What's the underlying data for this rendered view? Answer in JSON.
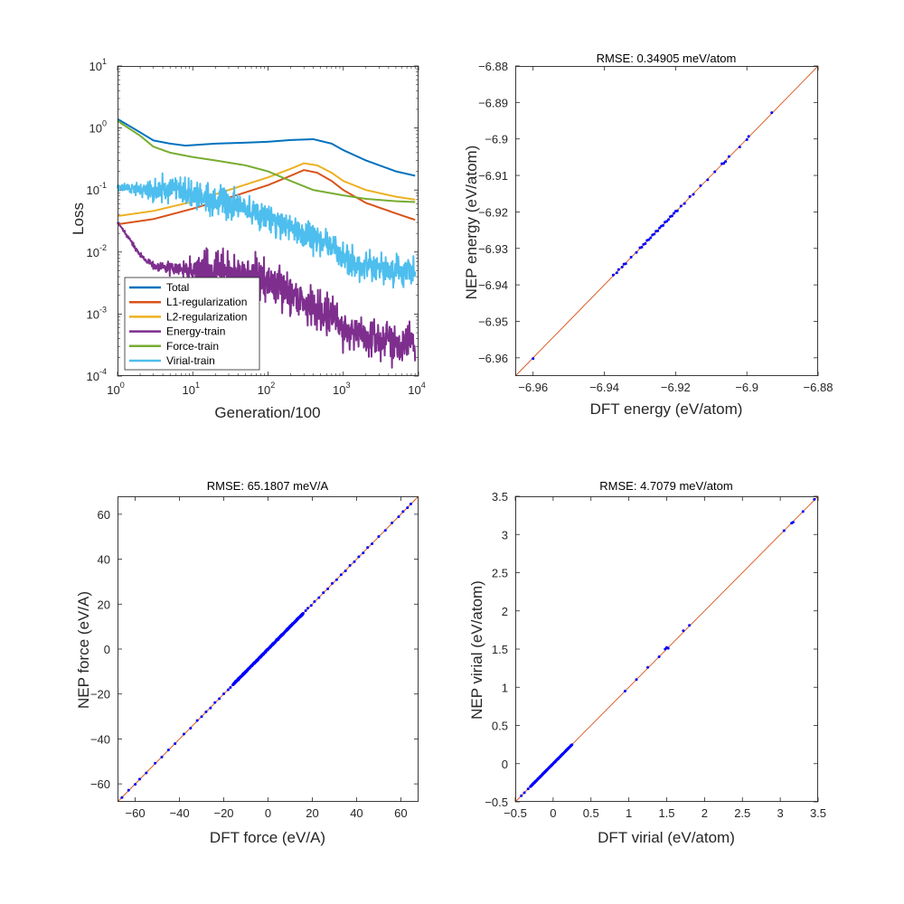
{
  "colors": {
    "total": "#0072BD",
    "l1": "#D95319",
    "l2": "#EDB120",
    "energy": "#7E2F8E",
    "force": "#77AC30",
    "virial": "#4DBEEE",
    "points": "#0000FF",
    "identity_line": "#D95319"
  },
  "chart_data": [
    {
      "id": "loss",
      "type": "line",
      "title": "",
      "xlabel": "Generation/100",
      "ylabel": "Loss",
      "xscale": "log",
      "yscale": "log",
      "xlim": [
        1,
        10000
      ],
      "ylim": [
        0.0001,
        10
      ],
      "xticks": [
        {
          "value": 1,
          "base": "10",
          "exp": "0"
        },
        {
          "value": 10,
          "base": "10",
          "exp": "1"
        },
        {
          "value": 100,
          "base": "10",
          "exp": "2"
        },
        {
          "value": 1000,
          "base": "10",
          "exp": "3"
        },
        {
          "value": 10000,
          "base": "10",
          "exp": "4"
        }
      ],
      "yticks": [
        {
          "value": 0.0001,
          "base": "10",
          "exp": "-4"
        },
        {
          "value": 0.001,
          "base": "10",
          "exp": "-3"
        },
        {
          "value": 0.01,
          "base": "10",
          "exp": "-2"
        },
        {
          "value": 0.1,
          "base": "10",
          "exp": "-1"
        },
        {
          "value": 1,
          "base": "10",
          "exp": "0"
        },
        {
          "value": 10,
          "base": "10",
          "exp": "1"
        }
      ],
      "legend_position": "bottom-left",
      "series": [
        {
          "name": "Total",
          "color_key": "total",
          "noise": 0.01,
          "noise_x": 1000000,
          "points": [
            [
              1,
              1.4
            ],
            [
              2,
              0.85
            ],
            [
              3,
              0.63
            ],
            [
              5,
              0.56
            ],
            [
              8,
              0.52
            ],
            [
              20,
              0.56
            ],
            [
              50,
              0.58
            ],
            [
              100,
              0.6
            ],
            [
              200,
              0.64
            ],
            [
              400,
              0.66
            ],
            [
              700,
              0.56
            ],
            [
              1000,
              0.44
            ],
            [
              2000,
              0.3
            ],
            [
              5000,
              0.2
            ],
            [
              9000,
              0.17
            ]
          ]
        },
        {
          "name": "L1-regularization",
          "color_key": "l1",
          "noise": 0.0,
          "noise_x": 1000000,
          "points": [
            [
              1,
              0.028
            ],
            [
              3,
              0.034
            ],
            [
              10,
              0.05
            ],
            [
              30,
              0.075
            ],
            [
              100,
              0.12
            ],
            [
              200,
              0.17
            ],
            [
              300,
              0.21
            ],
            [
              450,
              0.19
            ],
            [
              700,
              0.14
            ],
            [
              1000,
              0.1
            ],
            [
              2000,
              0.062
            ],
            [
              5000,
              0.042
            ],
            [
              9000,
              0.033
            ]
          ]
        },
        {
          "name": "L2-regularization",
          "color_key": "l2",
          "noise": 0.0,
          "noise_x": 1000000,
          "points": [
            [
              1,
              0.038
            ],
            [
              3,
              0.046
            ],
            [
              10,
              0.065
            ],
            [
              30,
              0.1
            ],
            [
              100,
              0.16
            ],
            [
              200,
              0.22
            ],
            [
              300,
              0.27
            ],
            [
              450,
              0.25
            ],
            [
              700,
              0.19
            ],
            [
              1000,
              0.14
            ],
            [
              2000,
              0.1
            ],
            [
              5000,
              0.078
            ],
            [
              9000,
              0.07
            ]
          ]
        },
        {
          "name": "Energy-train",
          "color_key": "energy",
          "noise": 0.3,
          "noise_x": 15,
          "points": [
            [
              1,
              0.03
            ],
            [
              1.5,
              0.015
            ],
            [
              2,
              0.009
            ],
            [
              3,
              0.006
            ],
            [
              5,
              0.0055
            ],
            [
              10,
              0.005
            ],
            [
              20,
              0.005
            ],
            [
              40,
              0.0045
            ],
            [
              100,
              0.0033
            ],
            [
              200,
              0.0022
            ],
            [
              400,
              0.0013
            ],
            [
              700,
              0.0009
            ],
            [
              1000,
              0.0006
            ],
            [
              2000,
              0.00042
            ],
            [
              5000,
              0.00036
            ],
            [
              9000,
              0.00034
            ]
          ]
        },
        {
          "name": "Force-train",
          "color_key": "force",
          "noise": 0.015,
          "noise_x": 1000000,
          "points": [
            [
              1,
              1.3
            ],
            [
              2,
              0.75
            ],
            [
              3,
              0.5
            ],
            [
              5,
              0.4
            ],
            [
              10,
              0.34
            ],
            [
              20,
              0.3
            ],
            [
              50,
              0.25
            ],
            [
              100,
              0.2
            ],
            [
              200,
              0.14
            ],
            [
              400,
              0.1
            ],
            [
              1000,
              0.082
            ],
            [
              2000,
              0.072
            ],
            [
              5000,
              0.066
            ],
            [
              9000,
              0.064
            ]
          ]
        },
        {
          "name": "Virial-train",
          "color_key": "virial",
          "noise": 0.22,
          "noise_x": 4,
          "points": [
            [
              1,
              0.11
            ],
            [
              2,
              0.105
            ],
            [
              3,
              0.1
            ],
            [
              5,
              0.1
            ],
            [
              10,
              0.085
            ],
            [
              20,
              0.07
            ],
            [
              50,
              0.05
            ],
            [
              100,
              0.035
            ],
            [
              200,
              0.025
            ],
            [
              400,
              0.017
            ],
            [
              700,
              0.012
            ],
            [
              1000,
              0.008
            ],
            [
              2000,
              0.0055
            ],
            [
              5000,
              0.0048
            ],
            [
              9000,
              0.0047
            ]
          ]
        }
      ]
    },
    {
      "id": "energy",
      "type": "scatter",
      "title": "RMSE: 0.34905 meV/atom",
      "xlabel": "DFT energy (eV/atom)",
      "ylabel": "NEP energy (eV/atom)",
      "xlim": [
        -6.965,
        -6.88
      ],
      "ylim": [
        -6.965,
        -6.88
      ],
      "xticks": [
        -6.96,
        -6.94,
        -6.92,
        -6.9,
        -6.88
      ],
      "yticks": [
        -6.96,
        -6.95,
        -6.94,
        -6.93,
        -6.92,
        -6.91,
        -6.9,
        -6.89,
        -6.88
      ],
      "identity_line": true,
      "points": [
        [
          -6.96,
          -6.9602
        ],
        [
          -6.9375,
          -6.9373
        ],
        [
          -6.9365,
          -6.9367
        ],
        [
          -6.936,
          -6.9358
        ],
        [
          -6.935,
          -6.9351
        ],
        [
          -6.9345,
          -6.9343
        ],
        [
          -6.934,
          -6.9342
        ],
        [
          -6.9325,
          -6.9324
        ],
        [
          -6.931,
          -6.9311
        ],
        [
          -6.93,
          -6.9298
        ],
        [
          -6.9295,
          -6.9297
        ],
        [
          -6.929,
          -6.9289
        ],
        [
          -6.9285,
          -6.9287
        ],
        [
          -6.928,
          -6.9278
        ],
        [
          -6.9275,
          -6.9276
        ],
        [
          -6.927,
          -6.9271
        ],
        [
          -6.9265,
          -6.9263
        ],
        [
          -6.926,
          -6.9261
        ],
        [
          -6.9255,
          -6.9253
        ],
        [
          -6.925,
          -6.9252
        ],
        [
          -6.9245,
          -6.9244
        ],
        [
          -6.924,
          -6.9239
        ],
        [
          -6.9235,
          -6.9237
        ],
        [
          -6.923,
          -6.9228
        ],
        [
          -6.9225,
          -6.9226
        ],
        [
          -6.922,
          -6.9221
        ],
        [
          -6.9215,
          -6.9213
        ],
        [
          -6.921,
          -6.9211
        ],
        [
          -6.9205,
          -6.9204
        ],
        [
          -6.92,
          -6.9198
        ],
        [
          -6.9195,
          -6.9197
        ],
        [
          -6.9185,
          -6.9184
        ],
        [
          -6.9175,
          -6.9177
        ],
        [
          -6.916,
          -6.9158
        ],
        [
          -6.915,
          -6.9152
        ],
        [
          -6.913,
          -6.9128
        ],
        [
          -6.911,
          -6.9112
        ],
        [
          -6.909,
          -6.909
        ],
        [
          -6.907,
          -6.9068
        ],
        [
          -6.9065,
          -6.9067
        ],
        [
          -6.906,
          -6.9062
        ],
        [
          -6.905,
          -6.9048
        ],
        [
          -6.902,
          -6.9022
        ],
        [
          -6.9,
          -6.9002
        ],
        [
          -6.8995,
          -6.8993
        ],
        [
          -6.893,
          -6.8928
        ]
      ]
    },
    {
      "id": "force",
      "type": "scatter",
      "title": "RMSE: 65.1807 meV/A",
      "xlabel": "DFT force (eV/A)",
      "ylabel": "NEP force (eV/A)",
      "xlim": [
        -68,
        68
      ],
      "ylim": [
        -68,
        68
      ],
      "xticks": [
        -60,
        -40,
        -20,
        0,
        20,
        40,
        60
      ],
      "yticks": [
        -60,
        -40,
        -20,
        0,
        20,
        40,
        60
      ],
      "identity_line": true,
      "dense_band": {
        "range": [
          -16,
          16
        ],
        "count": 700,
        "spread": 0.3
      },
      "points": [
        [
          -66,
          -66.1
        ],
        [
          -63,
          -62.8
        ],
        [
          -60,
          -60.2
        ],
        [
          -58,
          -57.9
        ],
        [
          -55,
          -55.1
        ],
        [
          -51,
          -50.8
        ],
        [
          -48,
          -48.1
        ],
        [
          -45,
          -44.9
        ],
        [
          -42,
          -42.1
        ],
        [
          -38,
          -37.8
        ],
        [
          -35,
          -35.2
        ],
        [
          -32,
          -31.8
        ],
        [
          -30,
          -30.1
        ],
        [
          -28,
          -27.9
        ],
        [
          -26,
          -26.2
        ],
        [
          -24,
          -23.8
        ],
        [
          -22,
          -22.1
        ],
        [
          -20,
          -19.9
        ],
        [
          -18,
          -18.1
        ],
        [
          -17,
          -17.1
        ],
        [
          17,
          17.1
        ],
        [
          18,
          18.2
        ],
        [
          19.5,
          19.4
        ],
        [
          21,
          21.1
        ],
        [
          23,
          22.9
        ],
        [
          25,
          25.1
        ],
        [
          27,
          26.8
        ],
        [
          29,
          29.2
        ],
        [
          31,
          30.9
        ],
        [
          33,
          33.1
        ],
        [
          35,
          34.8
        ],
        [
          37,
          37.2
        ],
        [
          39,
          38.9
        ],
        [
          41,
          41.1
        ],
        [
          43,
          42.8
        ],
        [
          45,
          45.2
        ],
        [
          47,
          46.9
        ],
        [
          50,
          50.1
        ],
        [
          53,
          52.8
        ],
        [
          56,
          56.2
        ],
        [
          59,
          58.9
        ],
        [
          61,
          61.2
        ],
        [
          63,
          62.9
        ],
        [
          64.5,
          64.6
        ]
      ]
    },
    {
      "id": "virial",
      "type": "scatter",
      "title": "RMSE: 4.7079 meV/atom",
      "xlabel": "DFT virial (eV/atom)",
      "ylabel": "NEP virial (eV/atom)",
      "xlim": [
        -0.5,
        3.5
      ],
      "ylim": [
        -0.5,
        3.5
      ],
      "xticks": [
        -0.5,
        0,
        0.5,
        1,
        1.5,
        2,
        2.5,
        3,
        3.5
      ],
      "yticks": [
        -0.5,
        0,
        0.5,
        1,
        1.5,
        2,
        2.5,
        3,
        3.5
      ],
      "identity_line": true,
      "dense_band": {
        "range": [
          -0.3,
          0.25
        ],
        "count": 320,
        "spread": 0.004
      },
      "points": [
        [
          -0.42,
          -0.42
        ],
        [
          -0.38,
          -0.38
        ],
        [
          -0.33,
          -0.33
        ],
        [
          -0.3,
          -0.3
        ],
        [
          0.95,
          0.95
        ],
        [
          1.1,
          1.1
        ],
        [
          1.25,
          1.26
        ],
        [
          1.4,
          1.4
        ],
        [
          1.48,
          1.5
        ],
        [
          1.5,
          1.52
        ],
        [
          1.52,
          1.51
        ],
        [
          1.72,
          1.74
        ],
        [
          1.8,
          1.81
        ],
        [
          3.05,
          3.05
        ],
        [
          3.15,
          3.15
        ],
        [
          3.17,
          3.16
        ],
        [
          3.3,
          3.3
        ],
        [
          3.45,
          3.46
        ]
      ]
    }
  ]
}
